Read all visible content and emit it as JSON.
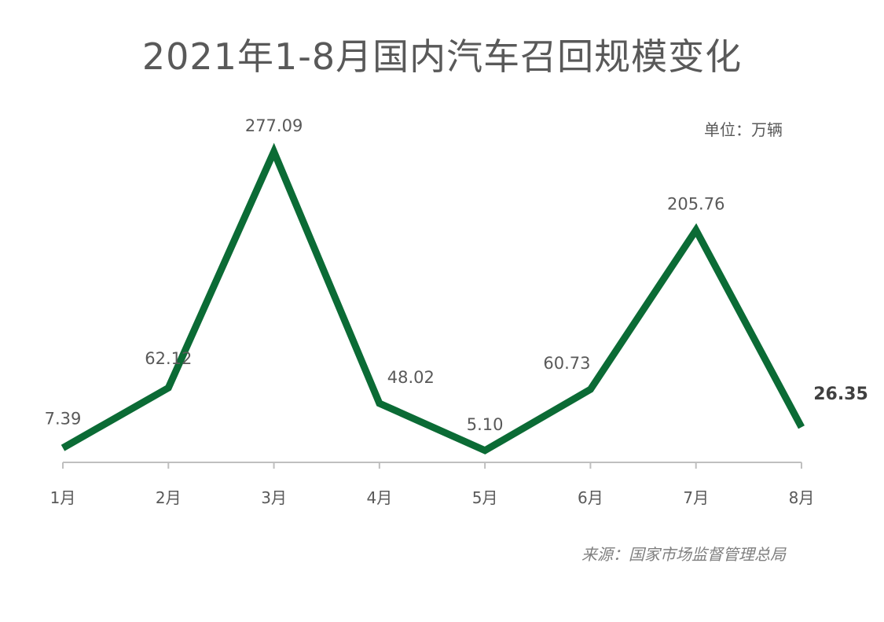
{
  "title": "2021年1-8月国内汽车召回规模变化",
  "unit": "单位：万辆",
  "source": "来源：国家市场监督管理总局",
  "colors": {
    "line": "#0b6b35",
    "axis": "#bfbfbf",
    "text": "#595959"
  },
  "chart_data": {
    "type": "line",
    "title": "2021年1-8月国内汽车召回规模变化",
    "categories": [
      "1月",
      "2月",
      "3月",
      "4月",
      "5月",
      "6月",
      "7月",
      "8月"
    ],
    "series": [
      {
        "values": [
          7.39,
          62.12,
          277.09,
          48.02,
          5.1,
          60.73,
          205.76,
          26.35
        ]
      }
    ],
    "value_labels": [
      "7.39",
      "62.12",
      "277.09",
      "48.02",
      "5.10",
      "60.73",
      "205.76",
      "26.35"
    ],
    "ylim": [
      0,
      277.09
    ],
    "grid": false,
    "legend": "none"
  }
}
